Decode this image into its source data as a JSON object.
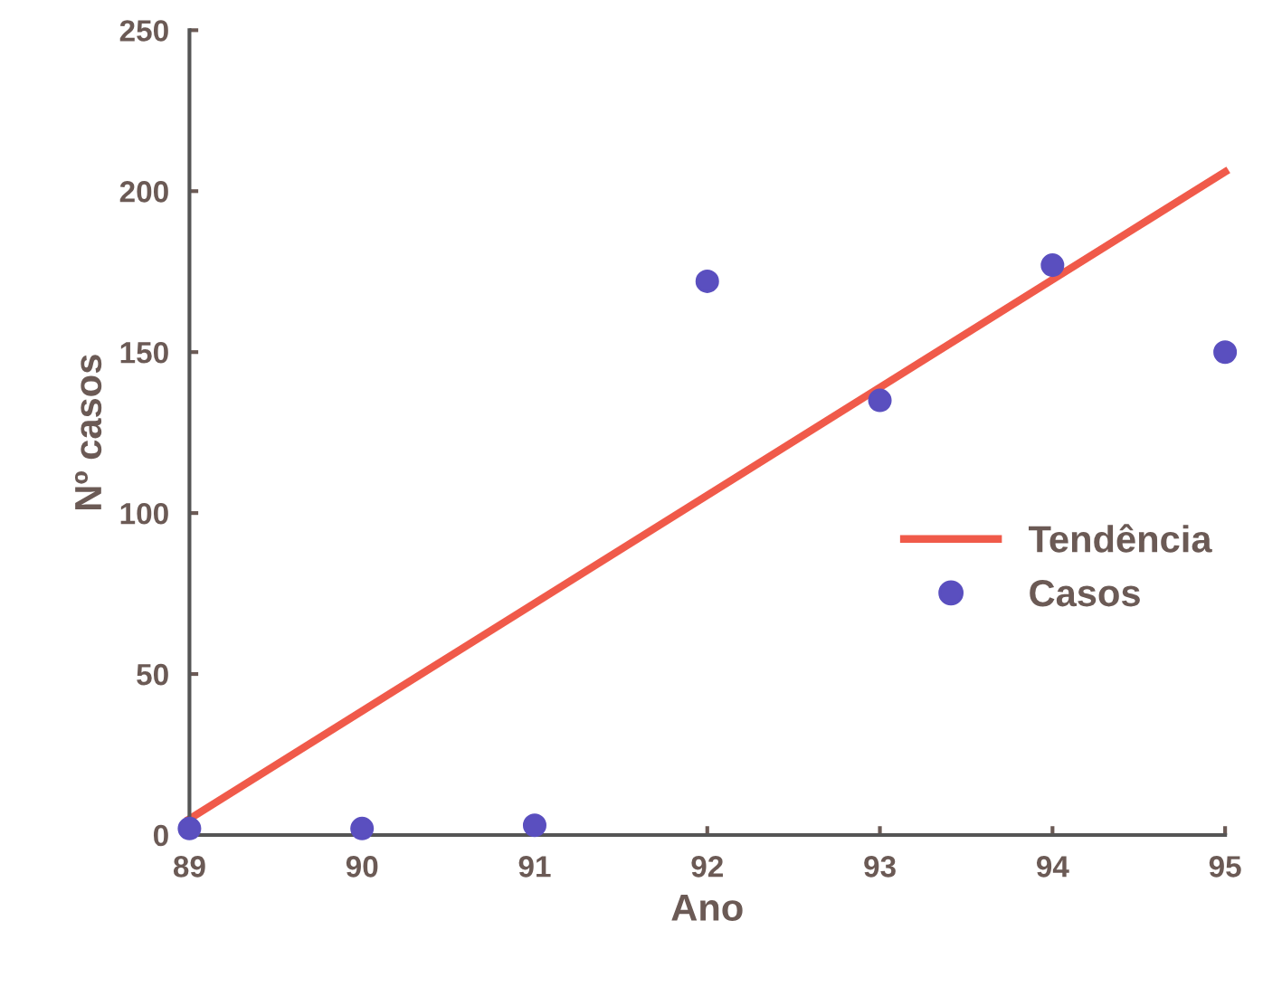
{
  "chart_data": {
    "type": "scatter",
    "xlabel": "Ano",
    "ylabel": "Nº casos",
    "xlim": [
      89,
      95
    ],
    "ylim": [
      0,
      250
    ],
    "xticks": [
      89,
      90,
      91,
      92,
      93,
      94,
      95
    ],
    "yticks": [
      0,
      50,
      100,
      150,
      200,
      250
    ],
    "legend": "right",
    "grid": false,
    "series": [
      {
        "name": "Tendência",
        "type": "line",
        "marker": "none",
        "color": "#f05a4a",
        "x": [
          89,
          95
        ],
        "values": [
          5,
          206
        ]
      },
      {
        "name": "Casos",
        "marker": "circle",
        "color": "#5a4fbf",
        "x": [
          89,
          90,
          91,
          92,
          93,
          94,
          95
        ],
        "values": [
          2,
          2,
          3,
          172,
          135,
          177,
          150
        ]
      }
    ]
  }
}
